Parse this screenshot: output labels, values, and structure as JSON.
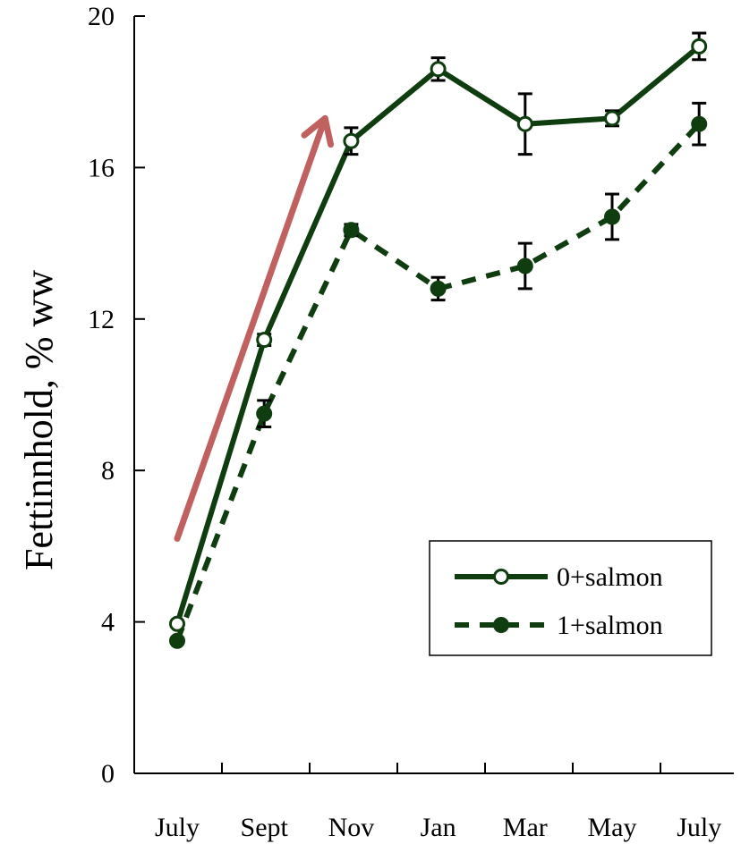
{
  "chart_data": {
    "type": "line",
    "title": "",
    "xlabel": "",
    "ylabel": "Fettinnhold, % ww",
    "categories": [
      "July",
      "Sept",
      "Nov",
      "Jan",
      "Mar",
      "May",
      "July"
    ],
    "ylim": [
      0,
      20
    ],
    "yticks": [
      "0",
      "4",
      "8",
      "12",
      "16",
      "20"
    ],
    "grid": false,
    "legend_position": "bottom-right",
    "series": [
      {
        "name": "0+salmon",
        "line_style": "solid",
        "marker": "open-circle",
        "color": "#0f3d0f",
        "values": [
          3.95,
          11.45,
          16.7,
          18.6,
          17.15,
          17.3,
          19.2
        ],
        "errors": [
          0,
          0.15,
          0.35,
          0.3,
          0.8,
          0.2,
          0.35
        ]
      },
      {
        "name": "1+salmon",
        "line_style": "dashed",
        "marker": "filled-circle",
        "color": "#0f3d0f",
        "values": [
          3.5,
          9.5,
          14.35,
          12.8,
          13.4,
          14.7,
          17.15
        ],
        "errors": [
          0,
          0.35,
          0.15,
          0.3,
          0.6,
          0.6,
          0.55
        ]
      }
    ],
    "annotations": [
      {
        "type": "arrow",
        "color": "#c0605f",
        "from": [
          0,
          6.2
        ],
        "to": [
          1.7,
          17.3
        ]
      }
    ]
  }
}
